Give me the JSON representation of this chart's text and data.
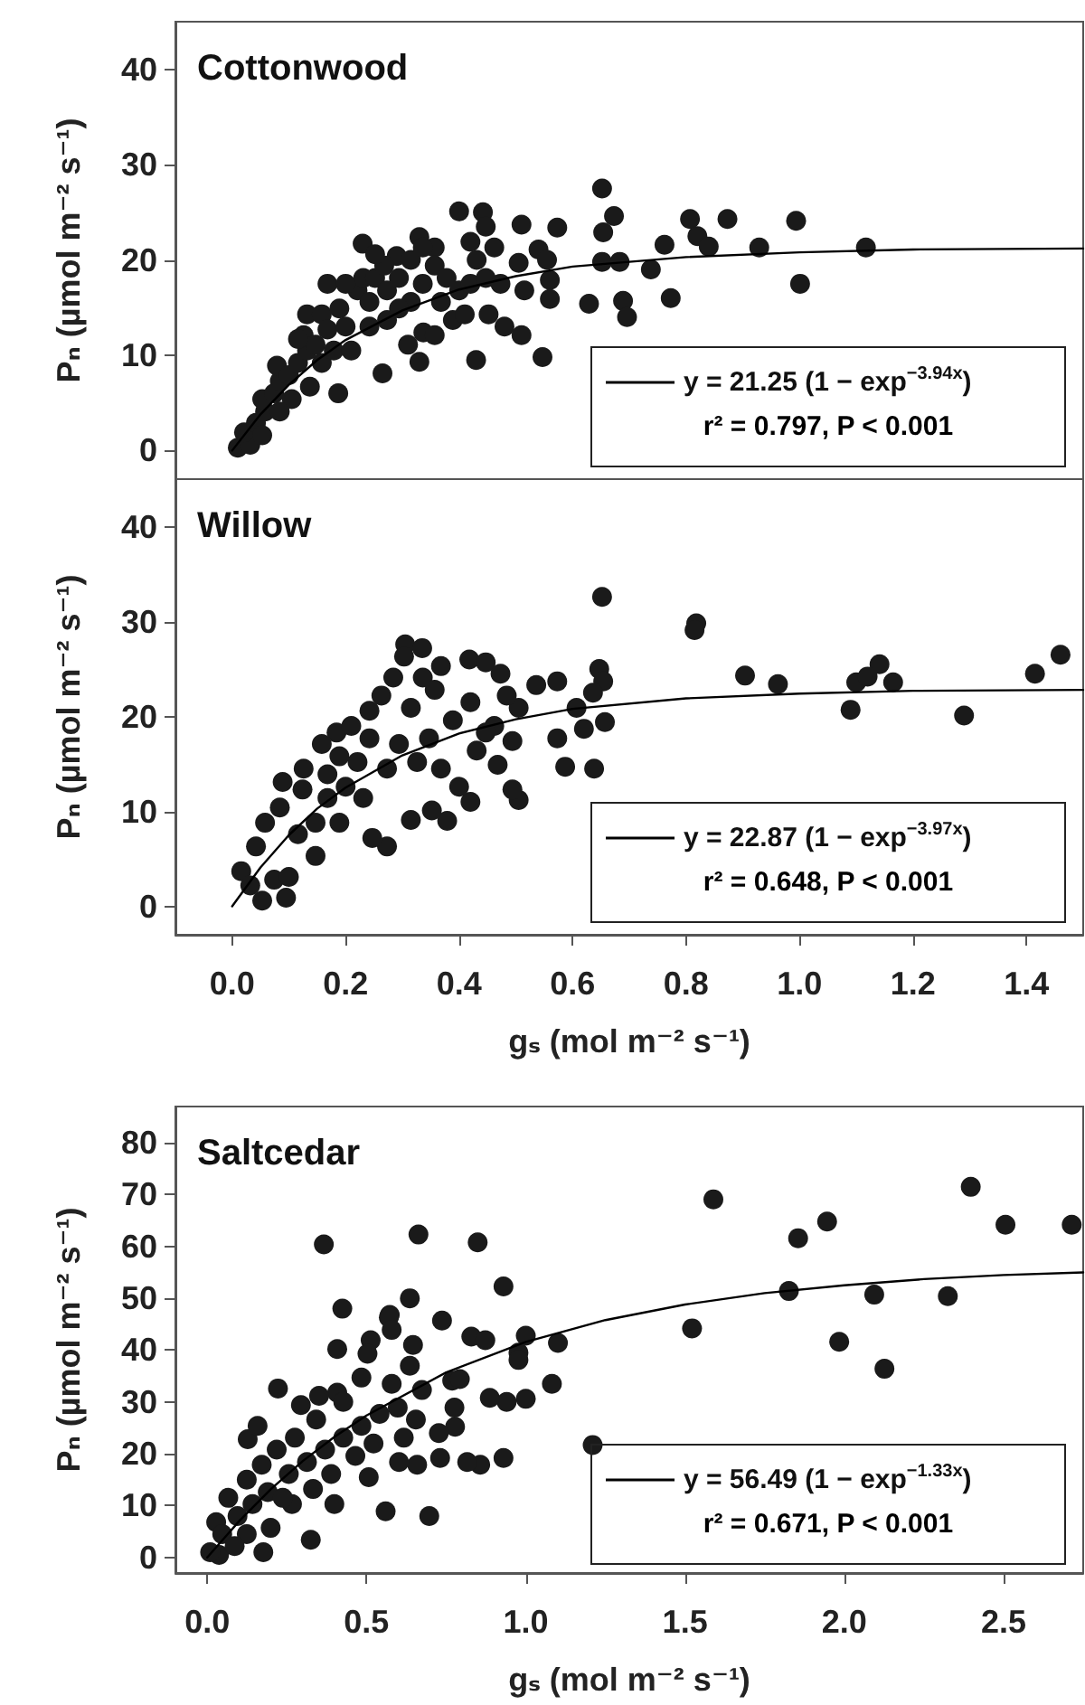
{
  "chart_data": [
    {
      "type": "scatter",
      "title": "Cottonwood",
      "ylabel": "Pₙ (µmol m⁻² s⁻¹)",
      "xlim": [
        -0.1,
        1.5
      ],
      "ylim": [
        -3,
        45
      ],
      "xticks": [
        {
          "value": 0,
          "label": null
        },
        {
          "value": 0.2,
          "label": null
        },
        {
          "value": 0.4,
          "label": null
        },
        {
          "value": 0.6,
          "label": null
        },
        {
          "value": 0.8,
          "label": null
        },
        {
          "value": 1.0,
          "label": null
        },
        {
          "value": 1.2,
          "label": null
        },
        {
          "value": 1.4,
          "label": null
        }
      ],
      "yticks": [
        0,
        10,
        20,
        30,
        40
      ],
      "tick_labels": "y",
      "grid": false,
      "legend": "bottom right",
      "marker": "circle",
      "annotations": [
        "r² = 0.797, P < 0.001"
      ],
      "series": [
        {
          "color": "#1a1a1a",
          "x": [
            0.652,
            0.4,
            0.442,
            0.673,
            0.807,
            0.873,
            0.994,
            0.23,
            0.29,
            0.33,
            0.51,
            0.573,
            0.654,
            0.82,
            0.84,
            0.929,
            1.117,
            0.762,
            0.54,
            0.555,
            0.505,
            0.652,
            0.683,
            0.738,
            1.001,
            0.629,
            0.689,
            0.696,
            0.773,
            0.56,
            0.56,
            0.48,
            0.51,
            0.547,
            0.43,
            0.33,
            0.265,
            0.187,
            0.447,
            0.462,
            0.42,
            0.357,
            0.4,
            0.452,
            0.515,
            0.337,
            0.31,
            0.01,
            0.032,
            0.021,
            0.042,
            0.058,
            0.053,
            0.074,
            0.084,
            0.079,
            0.1,
            0.116,
            0.132,
            0.126,
            0.147,
            0.132,
            0.158,
            0.168,
            0.189,
            0.2,
            0.221,
            0.231,
            0.242,
            0.252,
            0.273,
            0.268,
            0.294,
            0.315,
            0.315,
            0.336,
            0.357,
            0.368,
            0.378,
            0.389,
            0.357,
            0.42,
            0.431,
            0.447,
            0.473,
            0.158,
            0.179,
            0.21,
            0.242,
            0.273,
            0.294,
            0.105,
            0.137,
            0.084,
            0.053,
            0.116,
            0.168,
            0.2,
            0.252,
            0.336,
            0.41
          ],
          "values": [
            27.5,
            25.1,
            25.0,
            24.6,
            24.3,
            24.3,
            24.1,
            21.7,
            20.4,
            22.4,
            23.7,
            23.4,
            22.9,
            22.5,
            21.4,
            21.3,
            21.3,
            21.6,
            21.1,
            20.0,
            19.7,
            19.8,
            19.8,
            19.0,
            17.5,
            15.4,
            15.7,
            14.0,
            16.0,
            17.9,
            15.9,
            13.0,
            12.1,
            9.8,
            9.5,
            9.3,
            8.1,
            6.0,
            23.5,
            21.3,
            21.9,
            21.3,
            16.8,
            14.3,
            16.8,
            12.4,
            11.1,
            0.3,
            0.6,
            1.9,
            2.9,
            4.1,
            5.4,
            6.0,
            7.3,
            8.9,
            7.9,
            9.2,
            10.5,
            12.1,
            11.1,
            14.3,
            14.3,
            12.7,
            14.9,
            13.0,
            16.8,
            18.1,
            15.6,
            18.1,
            16.8,
            19.4,
            18.1,
            20.0,
            15.6,
            17.5,
            19.4,
            15.6,
            18.1,
            13.7,
            12.1,
            17.5,
            20.0,
            18.1,
            17.5,
            9.2,
            10.5,
            10.5,
            13.0,
            13.7,
            14.9,
            5.4,
            6.7,
            4.1,
            1.6,
            11.7,
            17.5,
            17.5,
            20.6,
            21.3,
            14.3
          ]
        },
        {
          "type": "line",
          "name": "y = 21.25 (1 − exp$^{−3.94x}$)",
          "color": "#000000",
          "marker": "none",
          "line_style": "solid",
          "x": [
            0,
            0.05,
            0.1,
            0.15,
            0.2,
            0.3,
            0.4,
            0.5,
            0.6,
            0.8,
            1.0,
            1.2,
            1.5
          ],
          "values": [
            0,
            3.8,
            6.9,
            9.5,
            11.6,
            14.7,
            16.9,
            18.3,
            19.3,
            20.3,
            20.8,
            21.1,
            21.2
          ]
        }
      ]
    },
    {
      "type": "scatter",
      "title": "Willow",
      "xlabel": "gₛ (mol m⁻² s⁻¹)",
      "ylabel": "Pₙ (µmol m⁻² s⁻¹)",
      "xlim": [
        -0.1,
        1.5
      ],
      "ylim": [
        -3,
        45
      ],
      "xticks": [
        {
          "value": 0,
          "label": "0.0"
        },
        {
          "value": 0.2,
          "label": "0.2"
        },
        {
          "value": 0.4,
          "label": "0.4"
        },
        {
          "value": 0.6,
          "label": "0.6"
        },
        {
          "value": 0.8,
          "label": "0.8"
        },
        {
          "value": 1.0,
          "label": "1.0"
        },
        {
          "value": 1.2,
          "label": "1.2"
        },
        {
          "value": 1.4,
          "label": "1.4"
        }
      ],
      "yticks": [
        0,
        10,
        20,
        30,
        40
      ],
      "grid": false,
      "legend": "bottom right",
      "marker": "circle",
      "annotations": [
        "r² = 0.648, P < 0.001"
      ],
      "series": [
        {
          "color": "#1a1a1a",
          "x": [
            0.652,
            0.818,
            0.815,
            1.46,
            1.415,
            0.904,
            0.962,
            1.141,
            1.1,
            1.12,
            1.165,
            1.09,
            1.29,
            0.647,
            0.654,
            0.636,
            0.607,
            0.657,
            0.62,
            0.573,
            0.587,
            0.638,
            0.573,
            0.536,
            0.505,
            0.505,
            0.494,
            0.379,
            0.273,
            0.247,
            0.305,
            0.335,
            0.303,
            0.418,
            0.447,
            0.473,
            0.336,
            0.368,
            0.284,
            0.242,
            0.184,
            0.158,
            0.126,
            0.089,
            0.124,
            0.084,
            0.058,
            0.042,
            0.016,
            0.032,
            0.053,
            0.095,
            0.074,
            0.1,
            0.147,
            0.189,
            0.231,
            0.42,
            0.4,
            0.368,
            0.431,
            0.468,
            0.462,
            0.42,
            0.389,
            0.347,
            0.326,
            0.294,
            0.273,
            0.242,
            0.221,
            0.2,
            0.168,
            0.147,
            0.116,
            0.21,
            0.263,
            0.315,
            0.357,
            0.484,
            0.447,
            0.494,
            0.189,
            0.168,
            0.352,
            0.315
          ],
          "values": [
            32.6,
            29.8,
            29.1,
            26.5,
            24.5,
            24.3,
            23.4,
            25.5,
            23.6,
            24.2,
            23.6,
            20.7,
            20.1,
            25.0,
            23.7,
            22.5,
            20.9,
            19.4,
            18.7,
            17.7,
            14.7,
            14.5,
            23.7,
            23.3,
            20.9,
            11.2,
            12.3,
            9.0,
            6.3,
            7.2,
            27.6,
            27.2,
            26.3,
            26.0,
            25.7,
            24.5,
            24.1,
            25.3,
            24.1,
            20.6,
            18.3,
            17.1,
            14.5,
            13.1,
            12.3,
            10.4,
            8.8,
            6.3,
            3.7,
            2.2,
            0.6,
            0.9,
            2.8,
            3.1,
            5.3,
            8.8,
            11.4,
            11.0,
            12.6,
            14.5,
            16.4,
            14.9,
            19.0,
            21.5,
            19.6,
            17.7,
            15.2,
            17.1,
            14.5,
            17.7,
            15.2,
            12.6,
            11.4,
            8.8,
            7.6,
            19.0,
            22.2,
            20.9,
            22.8,
            22.2,
            18.3,
            17.4,
            15.8,
            13.9,
            10.1,
            9.1
          ]
        },
        {
          "type": "line",
          "name": "y = 22.87 (1 − exp$^{−3.97x}$)",
          "color": "#000000",
          "marker": "none",
          "line_style": "solid",
          "x": [
            0,
            0.05,
            0.1,
            0.15,
            0.2,
            0.3,
            0.4,
            0.5,
            0.6,
            0.8,
            1.0,
            1.2,
            1.5
          ],
          "values": [
            0,
            4.1,
            7.5,
            10.3,
            12.5,
            15.9,
            18.2,
            19.7,
            20.8,
            21.9,
            22.4,
            22.7,
            22.8
          ]
        }
      ]
    },
    {
      "type": "scatter",
      "title": "Saltcedar",
      "xlabel": "gₛ (mol m⁻² s⁻¹)",
      "ylabel": "Pₙ (µmol m⁻² s⁻¹)",
      "xlim": [
        -0.1,
        2.75
      ],
      "ylim": [
        -3,
        87
      ],
      "xticks": [
        {
          "value": 0,
          "label": "0.0"
        },
        {
          "value": 0.5,
          "label": "0.5"
        },
        {
          "value": 1.0,
          "label": "1.0"
        },
        {
          "value": 1.5,
          "label": "1.5"
        },
        {
          "value": 2.0,
          "label": "2.0"
        },
        {
          "value": 2.5,
          "label": "2.5"
        }
      ],
      "yticks": [
        0,
        10,
        20,
        30,
        40,
        50,
        60,
        70,
        80
      ],
      "grid": false,
      "legend": "bottom right",
      "marker": "circle",
      "annotations": [
        "r² = 0.671, P < 0.001"
      ],
      "series": [
        {
          "color": "#1a1a1a",
          "x": [
            2.397,
            1.589,
            1.946,
            1.855,
            2.506,
            2.714,
            0.366,
            0.663,
            0.849,
            0.93,
            0.636,
            0.424,
            0.573,
            0.737,
            1.826,
            2.094,
            2.325,
            1.522,
            1.984,
            2.126,
            1.0,
            1.101,
            0.977,
            0.977,
            0.829,
            0.873,
            1.082,
            1.0,
            0.94,
            0.887,
            1.21,
            0.93,
            0.857,
            0.816,
            0.731,
            0.697,
            0.56,
            0.325,
            0.176,
            0.037,
            0.009,
            0.408,
            0.513,
            0.57,
            0.769,
            0.793,
            0.776,
            0.778,
            0.727,
            0.659,
            0.602,
            0.507,
            0.399,
            0.222,
            0.127,
            0.158,
            0.294,
            0.408,
            0.503,
            0.579,
            0.646,
            0.636,
            0.674,
            0.579,
            0.484,
            0.427,
            0.342,
            0.275,
            0.218,
            0.171,
            0.124,
            0.066,
            0.028,
            0.047,
            0.095,
            0.142,
            0.19,
            0.256,
            0.313,
            0.37,
            0.427,
            0.484,
            0.541,
            0.598,
            0.655,
            0.617,
            0.522,
            0.465,
            0.389,
            0.332,
            0.266,
            0.199,
            0.124,
            0.086,
            0.237,
            0.351
          ],
          "values": [
            71.5,
            69.1,
            64.8,
            61.6,
            64.2,
            64.2,
            60.4,
            62.3,
            60.8,
            52.3,
            50.0,
            48.0,
            46.8,
            45.7,
            51.4,
            50.7,
            50.4,
            44.2,
            41.6,
            36.4,
            42.8,
            41.4,
            39.5,
            38.1,
            42.6,
            41.9,
            33.5,
            30.6,
            30.0,
            30.8,
            21.7,
            19.2,
            17.9,
            18.4,
            19.2,
            8.0,
            8.9,
            3.4,
            1.0,
            0.5,
            1.0,
            40.2,
            41.9,
            46.3,
            34.1,
            34.4,
            28.9,
            25.2,
            24.0,
            17.9,
            18.4,
            15.5,
            10.3,
            32.6,
            22.8,
            25.4,
            29.4,
            31.8,
            39.3,
            43.9,
            41.0,
            37.0,
            32.3,
            33.5,
            34.7,
            30.0,
            26.6,
            23.1,
            20.8,
            17.9,
            15.0,
            11.5,
            6.8,
            4.5,
            8.0,
            10.3,
            12.6,
            16.1,
            18.4,
            20.8,
            23.1,
            25.4,
            27.7,
            28.9,
            26.6,
            23.1,
            22.0,
            19.6,
            16.1,
            13.2,
            10.3,
            5.7,
            4.5,
            2.2,
            11.5,
            31.2
          ]
        },
        {
          "type": "line",
          "name": "y = 56.49 (1 − exp$^{−1.33x}$)",
          "color": "#000000",
          "marker": "none",
          "line_style": "solid",
          "x": [
            0,
            0.1,
            0.2,
            0.3,
            0.4,
            0.5,
            0.75,
            1.0,
            1.25,
            1.5,
            1.75,
            2.0,
            2.25,
            2.5,
            2.75
          ],
          "values": [
            0,
            7.0,
            13.2,
            18.6,
            23.3,
            27.4,
            35.7,
            41.6,
            45.8,
            48.8,
            51.0,
            52.5,
            53.7,
            54.5,
            55.0
          ]
        }
      ]
    }
  ]
}
